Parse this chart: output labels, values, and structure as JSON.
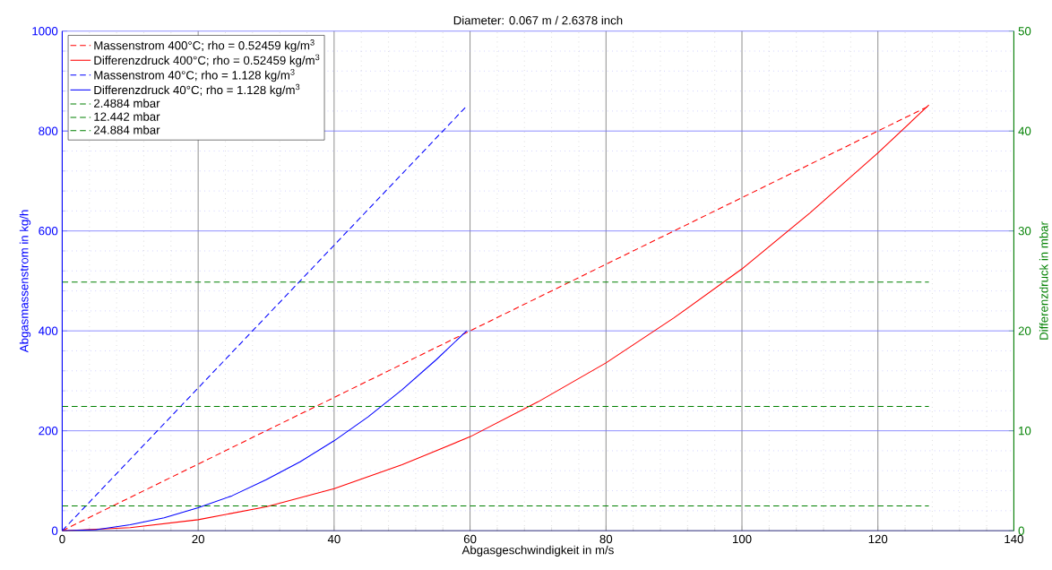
{
  "chart_data": {
    "type": "line",
    "title": "Diameter: 0.067 m / 2.6378 inch",
    "xlabel": "Abgasgeschwindigkeit in m/s",
    "ylabel": "Abgasmassenstrom in kg/h",
    "y2label": "Differenzdruck in mbar",
    "xlim": [
      0,
      140
    ],
    "xticks": [
      0,
      20,
      40,
      60,
      80,
      100,
      120,
      140,
      {
        "value": 4,
        "label": null
      },
      {
        "value": 8,
        "label": null
      },
      {
        "value": 12,
        "label": null
      },
      {
        "value": 16,
        "label": null
      },
      {
        "value": 24,
        "label": null
      },
      {
        "value": 28,
        "label": null
      },
      {
        "value": 32,
        "label": null
      },
      {
        "value": 36,
        "label": null
      },
      {
        "value": 44,
        "label": null
      },
      {
        "value": 48,
        "label": null
      },
      {
        "value": 52,
        "label": null
      },
      {
        "value": 56,
        "label": null
      },
      {
        "value": 64,
        "label": null
      },
      {
        "value": 68,
        "label": null
      },
      {
        "value": 72,
        "label": null
      },
      {
        "value": 76,
        "label": null
      },
      {
        "value": 84,
        "label": null
      },
      {
        "value": 88,
        "label": null
      },
      {
        "value": 92,
        "label": null
      },
      {
        "value": 96,
        "label": null
      },
      {
        "value": 104,
        "label": null
      },
      {
        "value": 108,
        "label": null
      },
      {
        "value": 112,
        "label": null
      },
      {
        "value": 116,
        "label": null
      },
      {
        "value": 124,
        "label": null
      },
      {
        "value": 128,
        "label": null
      },
      {
        "value": 132,
        "label": null
      },
      {
        "value": 136,
        "label": null
      }
    ],
    "ylim": [
      0,
      1000
    ],
    "yticks": [
      0,
      200,
      400,
      600,
      800,
      1000,
      {
        "value": 40,
        "label": null
      },
      {
        "value": 80,
        "label": null
      },
      {
        "value": 120,
        "label": null
      },
      {
        "value": 160,
        "label": null
      },
      {
        "value": 240,
        "label": null
      },
      {
        "value": 280,
        "label": null
      },
      {
        "value": 320,
        "label": null
      },
      {
        "value": 360,
        "label": null
      },
      {
        "value": 440,
        "label": null
      },
      {
        "value": 480,
        "label": null
      },
      {
        "value": 520,
        "label": null
      },
      {
        "value": 560,
        "label": null
      },
      {
        "value": 640,
        "label": null
      },
      {
        "value": 680,
        "label": null
      },
      {
        "value": 720,
        "label": null
      },
      {
        "value": 760,
        "label": null
      },
      {
        "value": 840,
        "label": null
      },
      {
        "value": 880,
        "label": null
      },
      {
        "value": 920,
        "label": null
      },
      {
        "value": 960,
        "label": null
      }
    ],
    "y2lim": [
      0,
      50
    ],
    "y2ticks": [
      0,
      10,
      20,
      30,
      40,
      50
    ],
    "grid": true,
    "legend": "top left",
    "series": [
      {
        "name": "Massenstrom 400°C; rho = 0.52459 kg/m$^{3}$",
        "color": "#ff0000",
        "line_style": "dashed",
        "axis": "y",
        "x": [
          0,
          127.5
        ],
        "values": [
          0,
          850
        ]
      },
      {
        "name": "Differenzdruck 400°C; rho = 0.52459 kg/m$^{3}$",
        "color": "#ff0000",
        "line_style": "solid",
        "axis": "y2",
        "x": [
          0,
          10,
          20,
          30,
          40,
          50,
          60,
          70,
          80,
          90,
          100,
          110,
          120,
          127.5
        ],
        "values": [
          0,
          0.3,
          1.1,
          2.4,
          4.2,
          6.6,
          9.4,
          12.9,
          16.8,
          21.3,
          26.2,
          31.8,
          37.8,
          42.6
        ]
      },
      {
        "name": "Massenstrom 40°C; rho = 1.128 kg/m$^{3}$",
        "color": "#0000ff",
        "line_style": "dashed",
        "axis": "y",
        "x": [
          0,
          59.5
        ],
        "values": [
          0,
          850
        ]
      },
      {
        "name": "Differenzdruck 40°C; rho = 1.128 kg/m$^{3}$",
        "color": "#0000ff",
        "line_style": "solid",
        "axis": "y2",
        "x": [
          0,
          5,
          10,
          15,
          20,
          25,
          30,
          35,
          40,
          45,
          50,
          55,
          59.5
        ],
        "values": [
          0,
          0.1,
          0.6,
          1.3,
          2.3,
          3.5,
          5.1,
          6.9,
          9,
          11.4,
          14.1,
          17.1,
          20
        ]
      },
      {
        "name": "2.4884 mbar",
        "color": "#008000",
        "line_style": "dashed",
        "axis": "y2",
        "x": [
          0,
          127.5
        ],
        "values": [
          2.4884,
          2.4884
        ]
      },
      {
        "name": "12.442 mbar",
        "color": "#008000",
        "line_style": "dashed",
        "axis": "y2",
        "x": [
          0,
          127.5
        ],
        "values": [
          12.442,
          12.442
        ]
      },
      {
        "name": "24.884 mbar",
        "color": "#008000",
        "line_style": "dashed",
        "axis": "y2",
        "x": [
          0,
          127.5
        ],
        "values": [
          24.884,
          24.884
        ]
      }
    ]
  }
}
